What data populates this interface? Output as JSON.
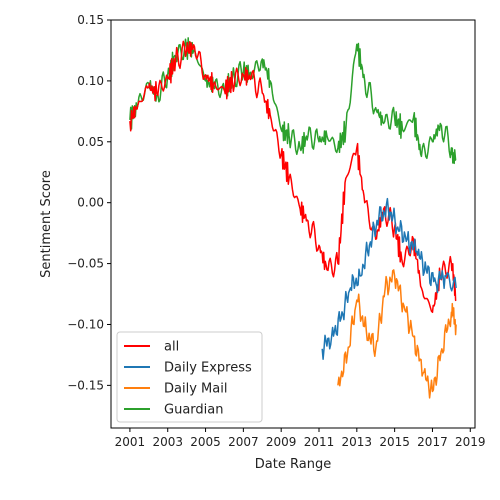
{
  "chart_data": {
    "type": "line",
    "xlabel": "Date Range",
    "ylabel": "Sentiment Score",
    "xlim": [
      "2000-01-01",
      "2019-04-01"
    ],
    "ylim": [
      -0.185,
      0.15
    ],
    "x_ticks": [
      "2001",
      "2003",
      "2005",
      "2007",
      "2009",
      "2011",
      "2013",
      "2015",
      "2017",
      "2019"
    ],
    "y_ticks": [
      "0.15",
      "0.10",
      "0.05",
      "0.00",
      "−0.05",
      "−0.10",
      "−0.15"
    ],
    "y_tick_values": [
      0.15,
      0.1,
      0.05,
      0.0,
      -0.05,
      -0.1,
      -0.15
    ],
    "grid": false,
    "legend_position": "lower-left",
    "series": [
      {
        "name": "all",
        "color": "#ff0000",
        "points": [
          [
            "2001-01",
            0.067
          ],
          [
            "2001-06",
            0.08
          ],
          [
            "2002-01",
            0.095
          ],
          [
            "2002-06",
            0.09
          ],
          [
            "2003-01",
            0.102
          ],
          [
            "2003-06",
            0.117
          ],
          [
            "2004-01",
            0.125
          ],
          [
            "2004-06",
            0.128
          ],
          [
            "2005-01",
            0.105
          ],
          [
            "2005-06",
            0.097
          ],
          [
            "2006-01",
            0.092
          ],
          [
            "2006-06",
            0.1
          ],
          [
            "2007-01",
            0.105
          ],
          [
            "2007-06",
            0.102
          ],
          [
            "2008-01",
            0.09
          ],
          [
            "2008-06",
            0.072
          ],
          [
            "2009-01",
            0.04
          ],
          [
            "2009-06",
            0.02
          ],
          [
            "2010-01",
            -0.005
          ],
          [
            "2010-06",
            -0.015
          ],
          [
            "2011-01",
            -0.035
          ],
          [
            "2011-06",
            -0.055
          ],
          [
            "2012-01",
            -0.05
          ],
          [
            "2012-06",
            0.02
          ],
          [
            "2013-01",
            0.045
          ],
          [
            "2013-06",
            0.0
          ],
          [
            "2014-01",
            -0.03
          ],
          [
            "2014-06",
            -0.005
          ],
          [
            "2015-01",
            -0.02
          ],
          [
            "2015-06",
            -0.05
          ],
          [
            "2016-01",
            -0.03
          ],
          [
            "2016-06",
            -0.07
          ],
          [
            "2017-01",
            -0.09
          ],
          [
            "2017-06",
            -0.06
          ],
          [
            "2018-01",
            -0.05
          ],
          [
            "2018-04",
            -0.08
          ]
        ]
      },
      {
        "name": "Daily Express",
        "color": "#1f77b4",
        "points": [
          [
            "2011-03",
            -0.12
          ],
          [
            "2011-09",
            -0.11
          ],
          [
            "2012-03",
            -0.095
          ],
          [
            "2012-09",
            -0.07
          ],
          [
            "2013-03",
            -0.06
          ],
          [
            "2013-09",
            -0.035
          ],
          [
            "2014-03",
            -0.012
          ],
          [
            "2014-09",
            -0.005
          ],
          [
            "2015-03",
            -0.02
          ],
          [
            "2015-09",
            -0.03
          ],
          [
            "2016-03",
            -0.04
          ],
          [
            "2016-09",
            -0.055
          ],
          [
            "2017-03",
            -0.065
          ],
          [
            "2017-09",
            -0.06
          ],
          [
            "2018-04",
            -0.07
          ]
        ]
      },
      {
        "name": "Daily Mail",
        "color": "#ff7f0e",
        "points": [
          [
            "2012-01",
            -0.15
          ],
          [
            "2012-07",
            -0.125
          ],
          [
            "2013-01",
            -0.08
          ],
          [
            "2013-07",
            -0.105
          ],
          [
            "2014-01",
            -0.12
          ],
          [
            "2014-07",
            -0.07
          ],
          [
            "2015-01",
            -0.06
          ],
          [
            "2015-07",
            -0.085
          ],
          [
            "2016-01",
            -0.11
          ],
          [
            "2016-07",
            -0.14
          ],
          [
            "2017-01",
            -0.155
          ],
          [
            "2017-07",
            -0.12
          ],
          [
            "2018-01",
            -0.09
          ],
          [
            "2018-04",
            -0.1
          ]
        ]
      },
      {
        "name": "Guardian",
        "color": "#2ca02c",
        "points": [
          [
            "2001-01",
            0.068
          ],
          [
            "2001-06",
            0.08
          ],
          [
            "2002-01",
            0.098
          ],
          [
            "2002-06",
            0.088
          ],
          [
            "2003-01",
            0.105
          ],
          [
            "2003-06",
            0.12
          ],
          [
            "2004-01",
            0.128
          ],
          [
            "2004-06",
            0.125
          ],
          [
            "2005-01",
            0.1
          ],
          [
            "2005-06",
            0.095
          ],
          [
            "2006-01",
            0.092
          ],
          [
            "2006-06",
            0.102
          ],
          [
            "2007-01",
            0.108
          ],
          [
            "2007-06",
            0.105
          ],
          [
            "2008-01",
            0.118
          ],
          [
            "2008-06",
            0.1
          ],
          [
            "2009-01",
            0.06
          ],
          [
            "2009-06",
            0.055
          ],
          [
            "2010-01",
            0.045
          ],
          [
            "2010-06",
            0.055
          ],
          [
            "2011-01",
            0.05
          ],
          [
            "2011-06",
            0.055
          ],
          [
            "2012-01",
            0.045
          ],
          [
            "2012-06",
            0.06
          ],
          [
            "2013-01",
            0.13
          ],
          [
            "2013-06",
            0.1
          ],
          [
            "2014-01",
            0.078
          ],
          [
            "2014-06",
            0.065
          ],
          [
            "2015-01",
            0.07
          ],
          [
            "2015-06",
            0.06
          ],
          [
            "2016-01",
            0.07
          ],
          [
            "2016-06",
            0.038
          ],
          [
            "2017-01",
            0.05
          ],
          [
            "2017-06",
            0.065
          ],
          [
            "2018-01",
            0.045
          ],
          [
            "2018-04",
            0.035
          ]
        ]
      }
    ]
  }
}
